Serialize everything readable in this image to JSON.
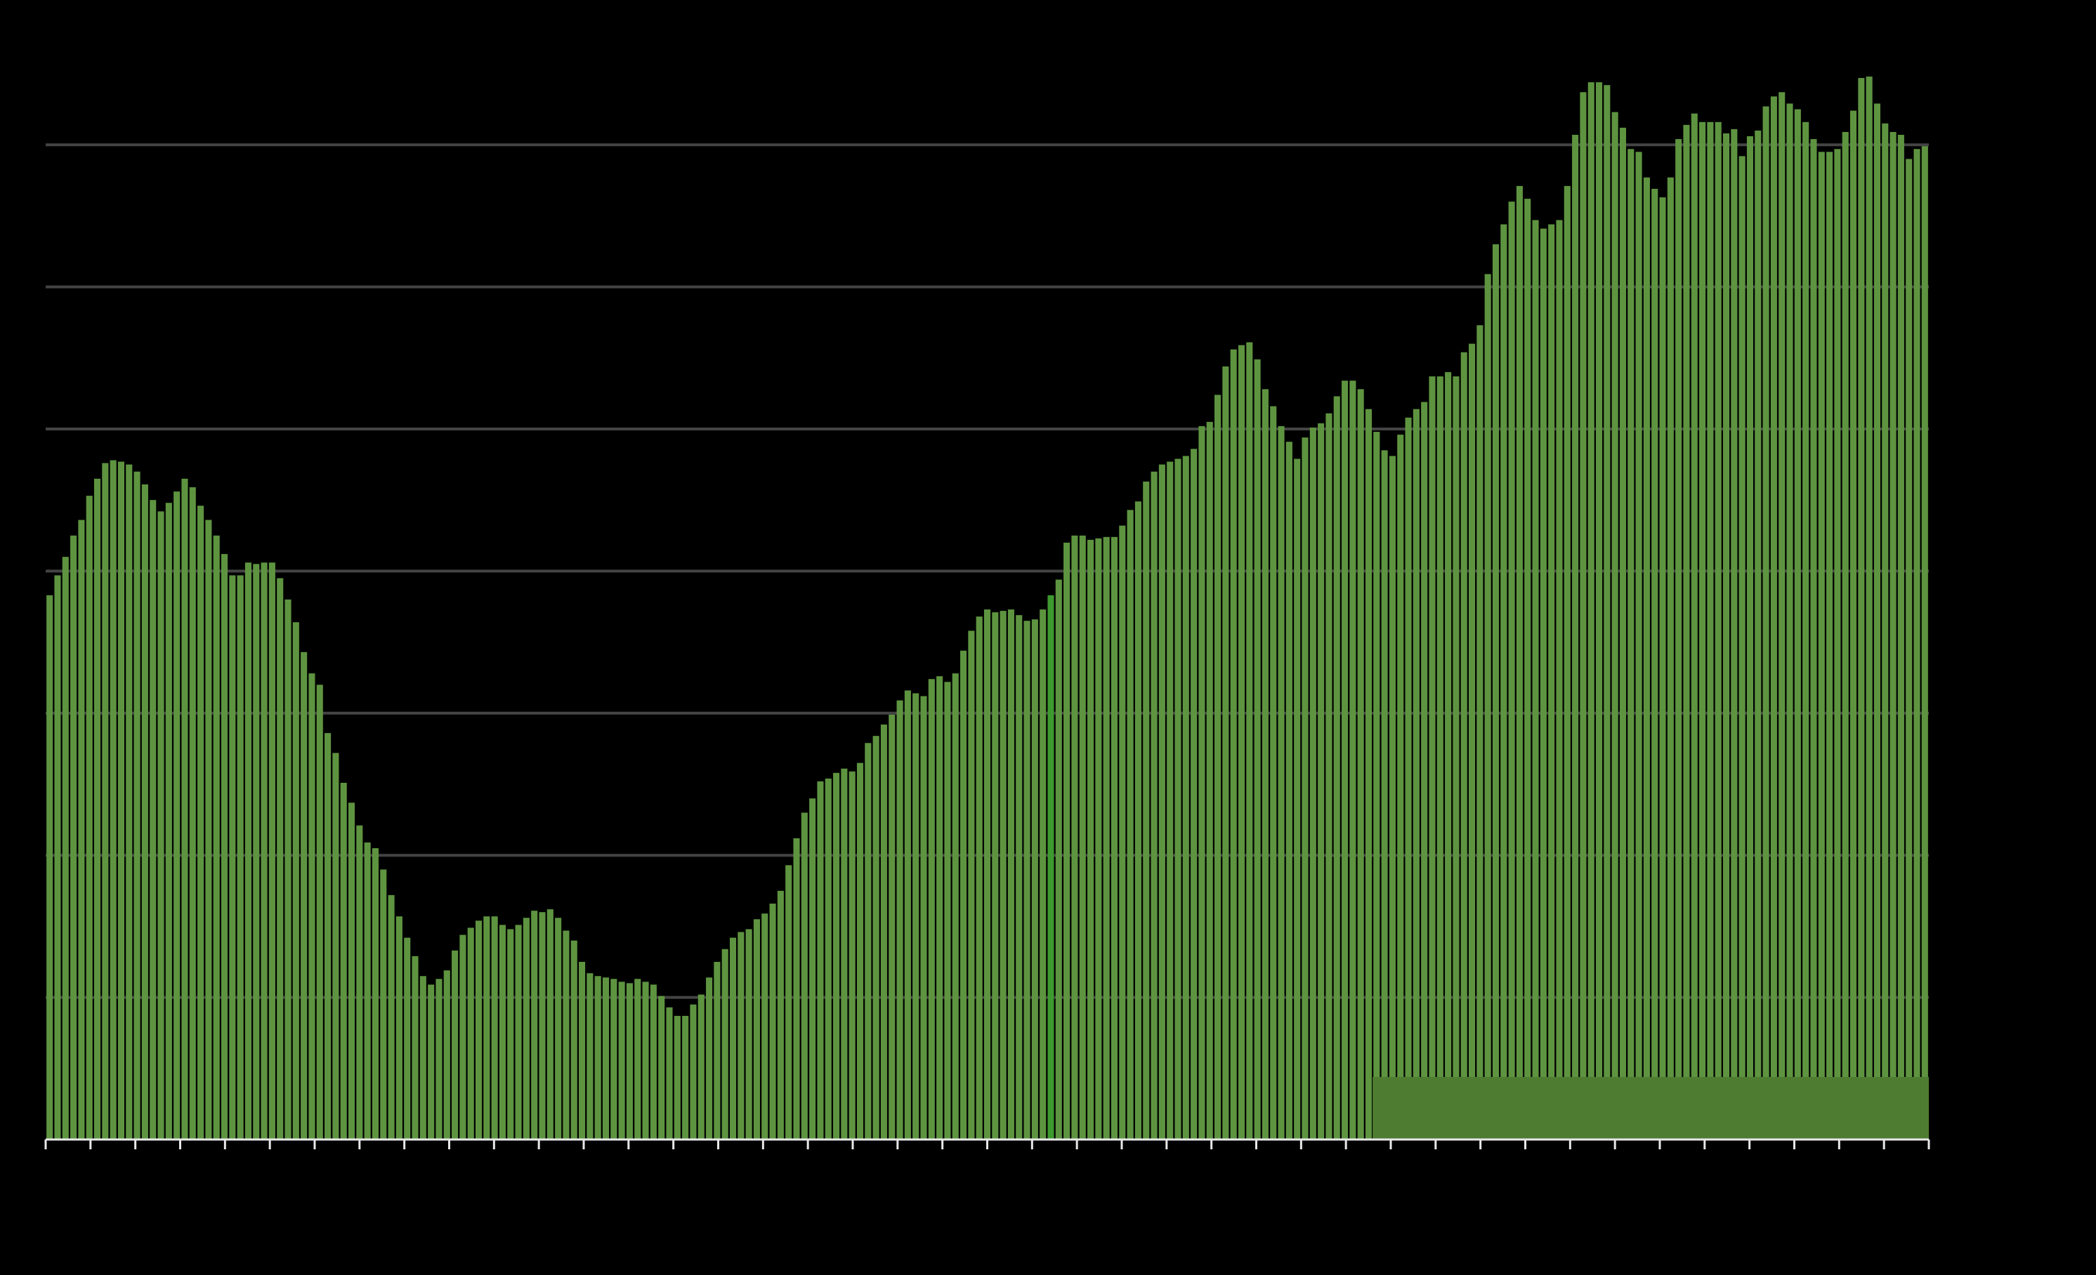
{
  "chart_data": {
    "type": "bar",
    "color": "#5e9440",
    "grid": true,
    "ylim": [
      0,
      7.5
    ],
    "yticks": [
      0,
      1,
      2,
      3,
      4,
      5,
      6,
      7
    ],
    "highlight_index": 126,
    "highlight_color": "#3c9a2e",
    "band": {
      "start": 167,
      "height": 0.44,
      "color": "#4e7d32"
    },
    "values": [
      3.83,
      3.97,
      4.1,
      4.25,
      4.36,
      4.53,
      4.65,
      4.76,
      4.78,
      4.77,
      4.75,
      4.7,
      4.61,
      4.5,
      4.42,
      4.48,
      4.56,
      4.65,
      4.59,
      4.46,
      4.36,
      4.25,
      4.12,
      3.97,
      3.97,
      4.06,
      4.05,
      4.06,
      4.06,
      3.95,
      3.8,
      3.64,
      3.43,
      3.28,
      3.2,
      2.86,
      2.72,
      2.51,
      2.37,
      2.21,
      2.09,
      2.05,
      1.9,
      1.72,
      1.57,
      1.42,
      1.29,
      1.15,
      1.09,
      1.13,
      1.19,
      1.33,
      1.44,
      1.49,
      1.54,
      1.57,
      1.57,
      1.51,
      1.48,
      1.51,
      1.56,
      1.61,
      1.6,
      1.62,
      1.56,
      1.47,
      1.4,
      1.25,
      1.17,
      1.15,
      1.14,
      1.13,
      1.11,
      1.1,
      1.13,
      1.11,
      1.09,
      1.01,
      0.93,
      0.87,
      0.87,
      0.95,
      1.02,
      1.14,
      1.25,
      1.34,
      1.42,
      1.46,
      1.48,
      1.55,
      1.59,
      1.66,
      1.75,
      1.93,
      2.12,
      2.3,
      2.4,
      2.52,
      2.54,
      2.58,
      2.61,
      2.59,
      2.65,
      2.79,
      2.84,
      2.92,
      2.99,
      3.09,
      3.16,
      3.14,
      3.12,
      3.24,
      3.26,
      3.22,
      3.28,
      3.44,
      3.58,
      3.68,
      3.73,
      3.71,
      3.72,
      3.73,
      3.69,
      3.65,
      3.66,
      3.73,
      3.83,
      3.94,
      4.2,
      4.25,
      4.25,
      4.22,
      4.23,
      4.24,
      4.24,
      4.32,
      4.43,
      4.49,
      4.63,
      4.7,
      4.75,
      4.77,
      4.79,
      4.81,
      4.86,
      5.02,
      5.05,
      5.24,
      5.44,
      5.56,
      5.59,
      5.61,
      5.49,
      5.28,
      5.16,
      5.02,
      4.91,
      4.79,
      4.94,
      5.01,
      5.04,
      5.11,
      5.23,
      5.34,
      5.34,
      5.28,
      5.14,
      4.98,
      4.85,
      4.81,
      4.96,
      5.08,
      5.14,
      5.19,
      5.37,
      5.37,
      5.4,
      5.37,
      5.54,
      5.6,
      5.73,
      6.09,
      6.3,
      6.44,
      6.6,
      6.71,
      6.62,
      6.47,
      6.41,
      6.44,
      6.47,
      6.71,
      7.07,
      7.37,
      7.44,
      7.44,
      7.42,
      7.23,
      7.12,
      6.97,
      6.95,
      6.77,
      6.69,
      6.63,
      6.77,
      7.04,
      7.14,
      7.22,
      7.16,
      7.16,
      7.16,
      7.08,
      7.11,
      6.92,
      7.06,
      7.1,
      7.27,
      7.34,
      7.37,
      7.29,
      7.25,
      7.16,
      7.04,
      6.95,
      6.95,
      6.97,
      7.09,
      7.24,
      7.47,
      7.48,
      7.29,
      7.15,
      7.09,
      7.07,
      6.9,
      6.97,
      6.99
    ]
  }
}
